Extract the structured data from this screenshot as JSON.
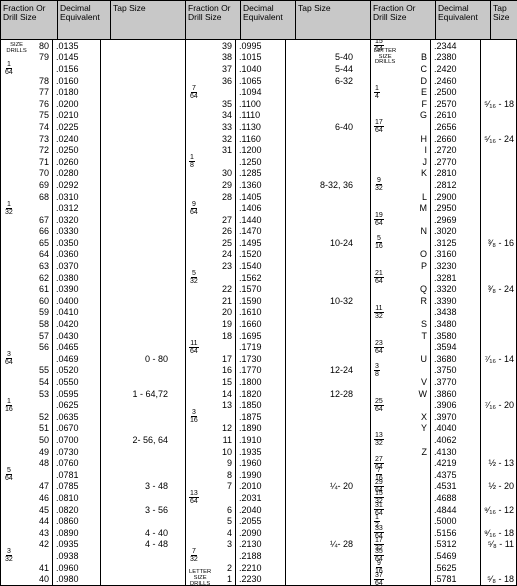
{
  "headers": {
    "frac": "Fraction Or\nDrill Size",
    "dec": "Decimal\nEquivalent",
    "tap": "Tap Size"
  },
  "panels": [
    {
      "fcol": [
        {
          "t": "NUMBER\nSIZE\nDRILLS",
          "tiny": true,
          "r": "80"
        },
        {
          "r": "79"
        },
        {
          "f": "1/64"
        },
        {
          "r": "78"
        },
        {
          "r": "77"
        },
        {
          "r": "76"
        },
        {
          "r": "75"
        },
        {
          "r": "74"
        },
        {
          "r": "73"
        },
        {
          "r": "72"
        },
        {
          "r": "71"
        },
        {
          "r": "70"
        },
        {
          "r": "69"
        },
        {
          "r": "68"
        },
        {
          "f": "1/32"
        },
        {
          "r": "67"
        },
        {
          "r": "66"
        },
        {
          "r": "65"
        },
        {
          "r": "64"
        },
        {
          "r": "63"
        },
        {
          "r": "62"
        },
        {
          "r": "61"
        },
        {
          "r": "60"
        },
        {
          "r": "59"
        },
        {
          "r": "58"
        },
        {
          "r": "57"
        },
        {
          "r": "56"
        },
        {
          "f": "3/64"
        },
        {
          "r": "55"
        },
        {
          "r": "54"
        },
        {
          "r": "53"
        },
        {
          "f": "1/16"
        },
        {
          "r": "52"
        },
        {
          "r": "51"
        },
        {
          "r": "50"
        },
        {
          "r": "49"
        },
        {
          "r": "48"
        },
        {
          "f": "5/64"
        },
        {
          "r": "47"
        },
        {
          "r": "46"
        },
        {
          "r": "45"
        },
        {
          "r": "44"
        },
        {
          "r": "43"
        },
        {
          "r": "42"
        },
        {
          "f": "3/32"
        },
        {
          "r": "41"
        },
        {
          "r": "40"
        }
      ],
      "dcol": [
        ".0135",
        ".0145",
        ".0156",
        ".0160",
        ".0180",
        ".0200",
        ".0210",
        ".0225",
        ".0240",
        ".0250",
        ".0260",
        ".0280",
        ".0292",
        ".0310",
        ".0312",
        ".0320",
        ".0330",
        ".0350",
        ".0360",
        ".0370",
        ".0380",
        ".0390",
        ".0400",
        ".0410",
        ".0420",
        ".0430",
        ".0465",
        ".0469",
        ".0520",
        ".0550",
        ".0595",
        ".0625",
        ".0635",
        ".0670",
        ".0700",
        ".0730",
        ".0760",
        ".0781",
        ".0785",
        ".0810",
        ".0820",
        ".0860",
        ".0890",
        ".0935",
        ".0938",
        ".0960",
        ".0980"
      ],
      "tcol": {
        "27": "0 - 80",
        "30": "1 - 64,72",
        "34": "2- 56, 64",
        "38": "3 - 48",
        "40": "3 - 56",
        "42": "4 - 40",
        "43": "4 - 48"
      }
    },
    {
      "fcol": [
        {
          "r": "39"
        },
        {
          "r": "38"
        },
        {
          "r": "37"
        },
        {
          "r": "36"
        },
        {
          "f": "7/64"
        },
        {
          "r": "35"
        },
        {
          "r": "34"
        },
        {
          "r": "33"
        },
        {
          "r": "32"
        },
        {
          "r": "31"
        },
        {
          "f": "1/8"
        },
        {
          "r": "30"
        },
        {
          "r": "29"
        },
        {
          "r": "28"
        },
        {
          "f": "9/64"
        },
        {
          "r": "27"
        },
        {
          "r": "26"
        },
        {
          "r": "25"
        },
        {
          "r": "24"
        },
        {
          "r": "23"
        },
        {
          "f": "5/32"
        },
        {
          "r": "22"
        },
        {
          "r": "21"
        },
        {
          "r": "20"
        },
        {
          "r": "19"
        },
        {
          "r": "18"
        },
        {
          "f": "11/64"
        },
        {
          "r": "17"
        },
        {
          "r": "16"
        },
        {
          "r": "15"
        },
        {
          "r": "14"
        },
        {
          "r": "13"
        },
        {
          "f": "3/16"
        },
        {
          "r": "12"
        },
        {
          "r": "11"
        },
        {
          "r": "10"
        },
        {
          "r": "9"
        },
        {
          "r": "8"
        },
        {
          "r": "7"
        },
        {
          "f": "13/64"
        },
        {
          "r": "6"
        },
        {
          "r": "5"
        },
        {
          "r": "4"
        },
        {
          "r": "3"
        },
        {
          "f": "7/32"
        },
        {
          "r": "2"
        },
        {
          "t": "LETTER\nSIZE\nDRILLS",
          "tiny": true,
          "r": "1"
        }
      ],
      "dcol": [
        ".0995",
        ".1015",
        ".1040",
        ".1065",
        ".1094",
        ".1100",
        ".1110",
        ".1130",
        ".1160",
        ".1200",
        ".1250",
        ".1285",
        ".1360",
        ".1405",
        ".1406",
        ".1440",
        ".1470",
        ".1495",
        ".1520",
        ".1540",
        ".1562",
        ".1570",
        ".1590",
        ".1610",
        ".1660",
        ".1695",
        ".1719",
        ".1730",
        ".1770",
        ".1800",
        ".1820",
        ".1850",
        ".1875",
        ".1890",
        ".1910",
        ".1935",
        ".1960",
        ".1990",
        ".2010",
        ".2031",
        ".2040",
        ".2055",
        ".2090",
        ".2130",
        ".2188",
        ".2210",
        ".2230"
      ],
      "tcol": {
        "1": "5-40",
        "2": "5-44",
        "3": "6-32",
        "7": "6-40",
        "12": "8-32, 36",
        "17": "10-24",
        "22": "10-32",
        "28": "12-24",
        "30": "12-28",
        "38": "¼- 20",
        "43": "¼- 28"
      }
    },
    {
      "fcol": [
        {
          "f": "15/64"
        },
        {
          "t": "LETTER\nSIZE\nDRILLS",
          "tiny": true,
          "r": "B"
        },
        {
          "r": "C"
        },
        {
          "r": "D"
        },
        {
          "f": "1/4",
          "r": "E"
        },
        {
          "r": "F"
        },
        {
          "r": "G"
        },
        {
          "f": "17/64"
        },
        {
          "r": "H"
        },
        {
          "r": "I"
        },
        {
          "r": "J"
        },
        {
          "r": "K"
        },
        {
          "f": "9/32"
        },
        {
          "r": "L"
        },
        {
          "r": "M"
        },
        {
          "f": "19/64"
        },
        {
          "r": "N"
        },
        {
          "f": "5/16"
        },
        {
          "r": "O"
        },
        {
          "r": "P"
        },
        {
          "f": "21/64"
        },
        {
          "r": "Q"
        },
        {
          "r": "R"
        },
        {
          "f": "11/32"
        },
        {
          "r": "S"
        },
        {
          "r": "T"
        },
        {
          "f": "23/64"
        },
        {
          "r": "U"
        },
        {
          "f": "3/8"
        },
        {
          "r": "V"
        },
        {
          "r": "W"
        },
        {
          "f": "25/64"
        },
        {
          "r": "X"
        },
        {
          "r": "Y"
        },
        {
          "f": "13/32"
        },
        {
          "r": "Z"
        },
        {
          "f": "27/64"
        },
        {
          "f": "7/16"
        },
        {
          "f": "29/64"
        },
        {
          "f": "15/32"
        },
        {
          "f": "31/64"
        },
        {
          "f": "1/2"
        },
        {
          "f": "33/64"
        },
        {
          "f": "17/32"
        },
        {
          "f": "35/64"
        },
        {
          "f": "9/16"
        },
        {
          "f": "37/64"
        }
      ],
      "dcol": [
        ".2344",
        ".2380",
        ".2420",
        ".2460",
        ".2500",
        ".2570",
        ".2610",
        ".2656",
        ".2660",
        ".2720",
        ".2770",
        ".2810",
        ".2812",
        ".2900",
        ".2950",
        ".2969",
        ".3020",
        ".3125",
        ".3160",
        ".3230",
        ".3281",
        ".3320",
        ".3390",
        ".3438",
        ".3480",
        ".3580",
        ".3594",
        ".3680",
        ".3750",
        ".3770",
        ".3860",
        ".3906",
        ".3970",
        ".4040",
        ".4062",
        ".4130",
        ".4219",
        ".4375",
        ".4531",
        ".4688",
        ".4844",
        ".5000",
        ".5156",
        ".5312",
        ".5469",
        ".5625",
        ".5781"
      ],
      "tcol": {
        "5": "⁵⁄₁₆ - 18",
        "8": "⁵⁄₁₆ - 24",
        "17": "³⁄₈ - 16",
        "21": "³⁄₈ - 24",
        "27": "⁷⁄₁₆ - 14",
        "31": "⁷⁄₁₆ - 20",
        "36": "½  - 13",
        "38": "½  - 20",
        "40": "⁹⁄₁₆ - 12",
        "42": "⁹⁄₁₆ - 18",
        "43": "⁵⁄₈  - 11",
        "46": "⁵⁄₈  - 18"
      }
    }
  ]
}
